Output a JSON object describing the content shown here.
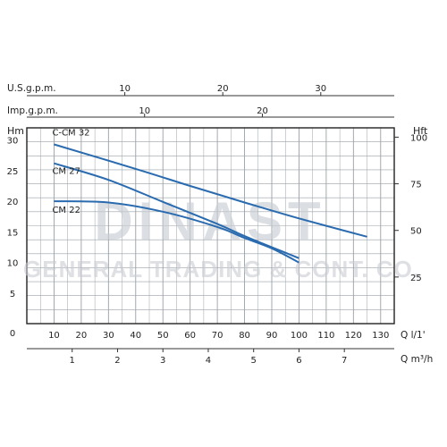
{
  "chart_data": {
    "type": "line",
    "axes": {
      "usgpm": {
        "label": "U.S.g.p.m.",
        "ticks": [
          10,
          20,
          30
        ],
        "range": [
          0,
          37.5
        ]
      },
      "impgpm": {
        "label": "Imp.g.p.m.",
        "ticks": [
          10,
          20
        ],
        "range": [
          0,
          31.2
        ]
      },
      "head_m": {
        "label": "Hm",
        "ticks": [
          0,
          5,
          10,
          15,
          20,
          25,
          30
        ],
        "range": [
          0,
          32
        ]
      },
      "head_ft": {
        "label": "Hft",
        "ticks": [
          25,
          50,
          75,
          100
        ],
        "range": [
          0,
          105
        ]
      },
      "flow_lmin": {
        "label": "Q l/1'",
        "ticks": [
          0,
          10,
          20,
          30,
          40,
          50,
          60,
          70,
          80,
          90,
          100,
          110,
          120,
          130
        ],
        "range": [
          0,
          135
        ]
      },
      "flow_m3h": {
        "label": "Q m³/h",
        "ticks": [
          1,
          2,
          3,
          4,
          5,
          6,
          7
        ],
        "range": [
          0,
          8.1
        ]
      }
    },
    "grid": true,
    "series": [
      {
        "name": "C-CM 32",
        "x": [
          10,
          40,
          60,
          80,
          100,
          125
        ],
        "y": [
          29.3,
          25.3,
          22.5,
          19.8,
          17.2,
          14.2
        ]
      },
      {
        "name": "CM 27",
        "x": [
          10,
          30,
          50,
          70,
          80,
          90,
          100
        ],
        "y": [
          26.2,
          23.5,
          19.9,
          16.3,
          14.3,
          12.5,
          10.7
        ]
      },
      {
        "name": "CM 22",
        "x": [
          10,
          30,
          50,
          70,
          80,
          90,
          100
        ],
        "y": [
          20.0,
          19.8,
          18.3,
          15.8,
          14.0,
          12.3,
          10.0
        ]
      }
    ],
    "series_color": "#2a6bb0",
    "watermark": [
      "DINAST",
      "GENERAL TRADING & CONT. CO."
    ]
  }
}
